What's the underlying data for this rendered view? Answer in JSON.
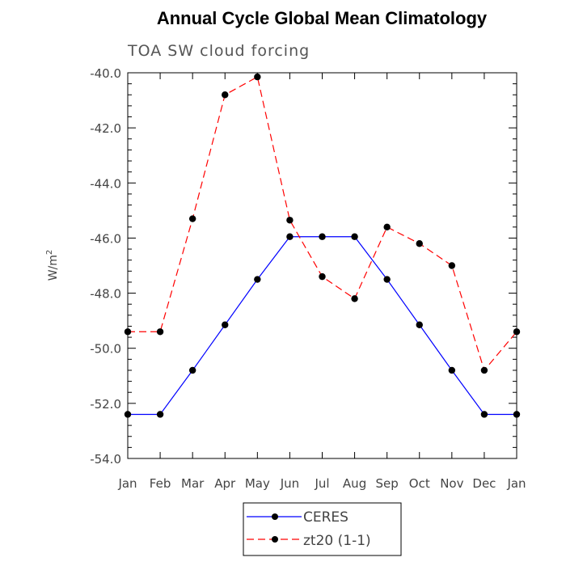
{
  "chart_data": {
    "type": "line",
    "title": "Annual Cycle Global Mean Climatology",
    "subtitle": "TOA SW cloud forcing",
    "ylabel": "W/m",
    "ylabel_superscript": "2",
    "ylim": [
      -54,
      -40
    ],
    "yticks": [
      "-40.0",
      "-42.0",
      "-44.0",
      "-46.0",
      "-48.0",
      "-50.0",
      "-52.0",
      "-54.0"
    ],
    "ytick_values": [
      -40,
      -42,
      -44,
      -46,
      -48,
      -50,
      -52,
      -54
    ],
    "categories": [
      "Jan",
      "Feb",
      "Mar",
      "Apr",
      "May",
      "Jun",
      "Jul",
      "Aug",
      "Sep",
      "Oct",
      "Nov",
      "Dec",
      "Jan"
    ],
    "series": [
      {
        "name": "CERES",
        "color": "#0000ff",
        "style": "solid",
        "values": [
          -52.4,
          -52.4,
          -50.8,
          -49.15,
          -47.5,
          -45.95,
          -45.95,
          -45.95,
          -47.5,
          -49.15,
          -50.8,
          -52.4,
          -52.4
        ]
      },
      {
        "name": "zt20 (1-1)",
        "color": "#ff0000",
        "style": "dashed",
        "values": [
          -49.4,
          -49.4,
          -45.3,
          -40.8,
          -40.15,
          -45.35,
          -47.4,
          -48.2,
          -45.6,
          -46.2,
          -47.0,
          -50.8,
          -49.4
        ]
      }
    ],
    "marker_color": "#000000",
    "grid": false,
    "legend_position": "bottom-center"
  }
}
